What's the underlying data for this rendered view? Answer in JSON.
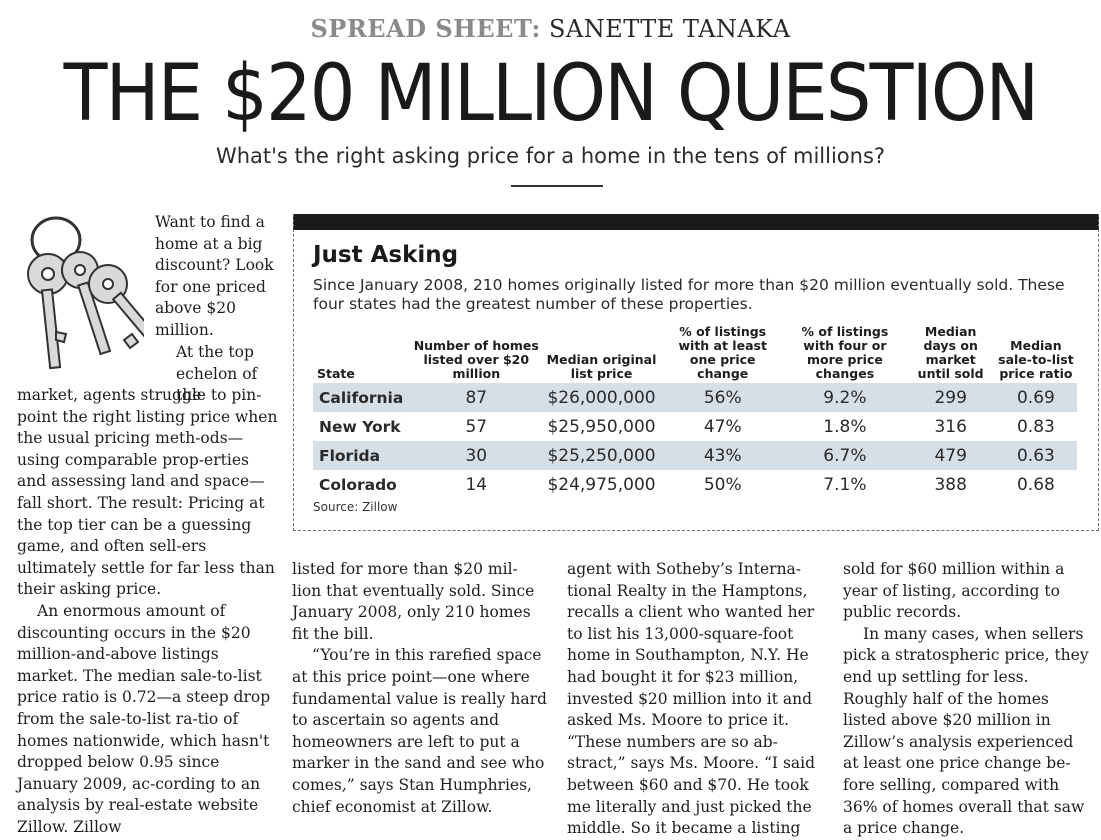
{
  "header": {
    "kicker_label": "SPREAD SHEET:",
    "kicker_name": "SANETTE TANAKA",
    "headline": "THE $20 MILLION QUESTION",
    "dek": "What's the right asking price for a home in the tens of millions?"
  },
  "article": {
    "col1_top": "Want to find a home at a big discount? Look for one priced above $20 million.",
    "col1_mid": "At the top echelon of the",
    "col1_p1": "market, agents struggle to pin-point the right listing price when the usual pricing meth-ods—using comparable prop-erties and assessing land and space—fall short. The result: Pricing at the top tier can be a guessing game, and often sell-ers ultimately settle for far less than their asking price.",
    "col1_p2": "An enormous amount of discounting occurs in the $20 million-and-above listings market. The median sale-to-list price ratio is 0.72—a steep drop from the sale-to-list ra-tio of homes nationwide, which hasn't dropped below 0.95 since January 2009, ac-cording to an analysis by real-estate website Zillow. Zillow",
    "col2_p1": "listed for more than $20 mil-lion that eventually sold. Since January 2008, only 210 homes fit the bill.",
    "col2_p2": "“You’re in this rarefied space at this price point—one where fundamental value is really hard to ascertain so agents and homeowners are left to put a marker in the sand and see who comes,” says Stan Humphries, chief economist at Zillow.",
    "col3_p1": "agent with Sotheby’s Interna-tional Realty in the Hamptons, recalls a client who wanted her to list his 13,000-square-foot home in Southampton, N.Y. He had bought it for $23 million, invested $20 million into it and asked Ms. Moore to price it. “These numbers are so ab-stract,” says Ms. Moore. “I said between $60 and $70. He took me literally and just picked the middle. So it became a listing",
    "col4_p1": "sold for $60 million within a year of listing, according to public records.",
    "col4_p2": "In many cases, when sellers pick a stratospheric price, they end up settling for less. Roughly half of the homes listed above $20 million in Zillow’s analysis experienced at least one price change be-fore selling, compared with 36% of homes overall that saw a price change."
  },
  "table_box": {
    "title": "Just Asking",
    "subtitle": "Since January 2008, 210 homes originally listed for more than $20 million eventually sold. These four states had the greatest number of these properties.",
    "headers": {
      "state": "State",
      "homes": "Number of homes listed over $20 million",
      "median_price": "Median original list price",
      "one_change": "% of listings with at least one price change",
      "four_changes": "% of listings with four or more price changes",
      "days": "Median days on market until sold",
      "ratio": "Median sale-to-list price ratio"
    },
    "rows": [
      {
        "state": "California",
        "homes": "87",
        "median_price": "$26,000,000",
        "one_change": "56%",
        "four_changes": "9.2%",
        "days": "299",
        "ratio": "0.69"
      },
      {
        "state": "New York",
        "homes": "57",
        "median_price": "$25,950,000",
        "one_change": "47%",
        "four_changes": "1.8%",
        "days": "316",
        "ratio": "0.83"
      },
      {
        "state": "Florida",
        "homes": "30",
        "median_price": "$25,250,000",
        "one_change": "43%",
        "four_changes": "6.7%",
        "days": "479",
        "ratio": "0.63"
      },
      {
        "state": "Colorado",
        "homes": "14",
        "median_price": "$24,975,000",
        "one_change": "50%",
        "four_changes": "7.1%",
        "days": "388",
        "ratio": "0.68"
      }
    ],
    "source": "Source: Zillow"
  },
  "illustration": {
    "icon": "house-keys-icon"
  }
}
